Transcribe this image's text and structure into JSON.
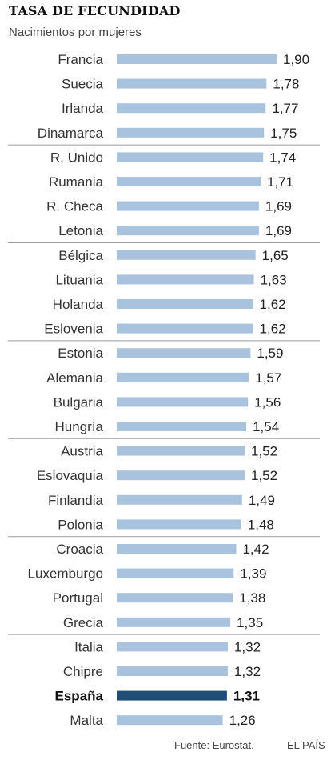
{
  "chart_data": {
    "type": "bar",
    "orientation": "horizontal",
    "title": "TASA DE FECUNDIDAD",
    "subtitle": "Nacimientos por mujeres",
    "categories": [
      "Francia",
      "Suecia",
      "Irlanda",
      "Dinamarca",
      "R. Unido",
      "Rumania",
      "R. Checa",
      "Letonia",
      "Bélgica",
      "Lituania",
      "Holanda",
      "Eslovenia",
      "Estonia",
      "Alemania",
      "Bulgaria",
      "Hungría",
      "Austria",
      "Eslovaquia",
      "Finlandia",
      "Polonia",
      "Croacia",
      "Luxemburgo",
      "Portugal",
      "Grecia",
      "Italia",
      "Chipre",
      "España",
      "Malta"
    ],
    "values": [
      1.9,
      1.78,
      1.77,
      1.75,
      1.74,
      1.71,
      1.69,
      1.69,
      1.65,
      1.63,
      1.62,
      1.62,
      1.59,
      1.57,
      1.56,
      1.54,
      1.52,
      1.52,
      1.49,
      1.48,
      1.42,
      1.39,
      1.38,
      1.35,
      1.32,
      1.32,
      1.31,
      1.26
    ],
    "value_labels": [
      "1,90",
      "1,78",
      "1,77",
      "1,75",
      "1,74",
      "1,71",
      "1,69",
      "1,69",
      "1,65",
      "1,63",
      "1,62",
      "1,62",
      "1,59",
      "1,57",
      "1,56",
      "1,54",
      "1,52",
      "1,52",
      "1,49",
      "1,48",
      "1,42",
      "1,39",
      "1,38",
      "1,35",
      "1,32",
      "1,32",
      "1,31",
      "1,26"
    ],
    "highlight": "España",
    "group_size": 4,
    "xlim": [
      0,
      1.9
    ],
    "grid": false,
    "legend": "none",
    "colors": {
      "bar": "#a9c3df",
      "highlight": "#1f4e79",
      "separator": "#9a9a9a"
    }
  },
  "footer": {
    "source": "Fuente: Eurostat.",
    "brand": "EL PAÍS"
  }
}
